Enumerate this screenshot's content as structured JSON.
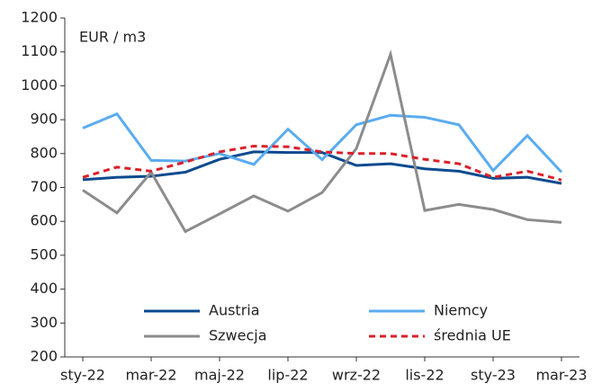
{
  "chart_data": {
    "type": "line",
    "annotation": "EUR / m3",
    "categories": [
      "sty-22",
      null,
      "mar-22",
      null,
      "maj-22",
      null,
      "lip-22",
      null,
      "wrz-22",
      null,
      "lis-22",
      null,
      "sty-23",
      null,
      "mar-23"
    ],
    "series": [
      {
        "name": "Austria",
        "color": "#0b4a8f",
        "dash": false,
        "values": [
          723,
          730,
          733,
          745,
          783,
          805,
          803,
          803,
          765,
          770,
          755,
          748,
          727,
          730,
          712
        ]
      },
      {
        "name": "Niemcy",
        "color": "#5aacf0",
        "dash": false,
        "values": [
          875,
          917,
          780,
          778,
          800,
          768,
          872,
          782,
          885,
          913,
          907,
          885,
          750,
          853,
          745
        ]
      },
      {
        "name": "Szwecja",
        "color": "#8c8c8c",
        "dash": false,
        "values": [
          692,
          625,
          745,
          570,
          622,
          675,
          630,
          685,
          815,
          1093,
          632,
          650,
          635,
          605,
          597
        ]
      },
      {
        "name": "średnia UE",
        "color": "#d9212b",
        "dash": true,
        "values": [
          730,
          760,
          748,
          775,
          805,
          822,
          820,
          805,
          800,
          800,
          783,
          770,
          730,
          748,
          722
        ]
      }
    ],
    "ylim": [
      200,
      1200
    ],
    "yticks": [
      200,
      300,
      400,
      500,
      600,
      700,
      800,
      900,
      1000,
      1100,
      1200
    ]
  }
}
